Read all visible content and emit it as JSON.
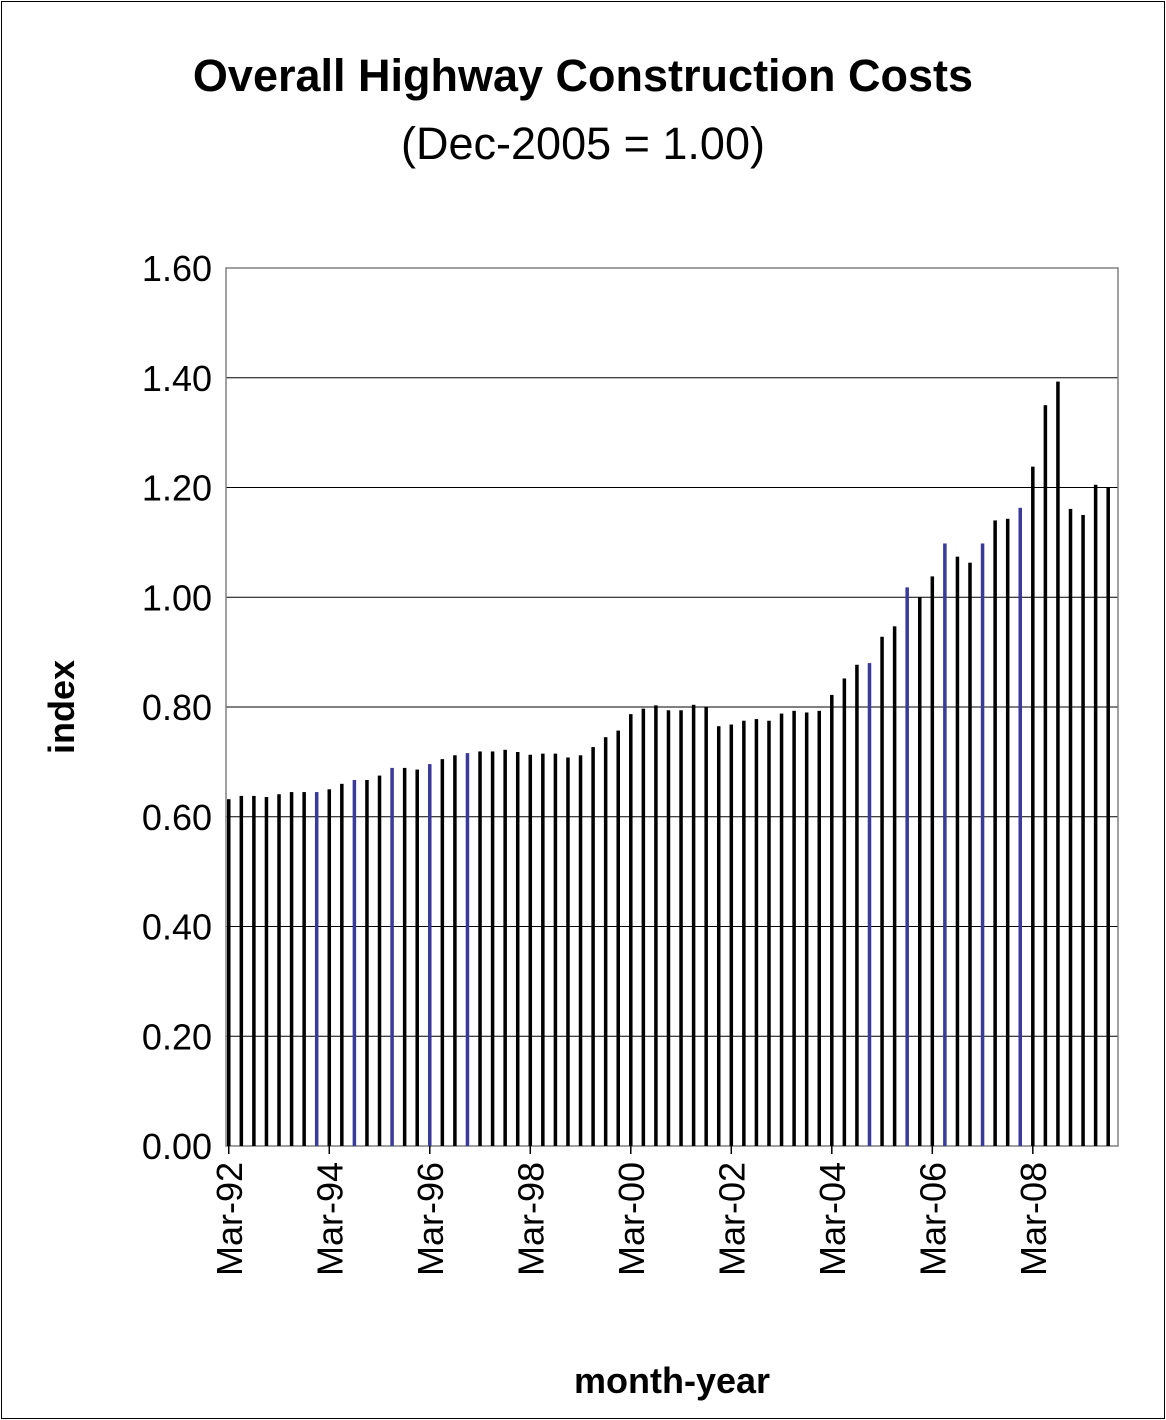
{
  "chart_data": {
    "type": "bar",
    "title": "Overall Highway Construction Costs",
    "subtitle": "(Dec-2005 = 1.00)",
    "xlabel": "month-year",
    "ylabel": "index",
    "ylim": [
      0,
      1.6
    ],
    "yticks": [
      "0.00",
      "0.20",
      "0.40",
      "0.60",
      "0.80",
      "1.00",
      "1.20",
      "1.40",
      "1.60"
    ],
    "xticks": [
      "Mar-92",
      "Mar-94",
      "Mar-96",
      "Mar-98",
      "Mar-00",
      "Mar-02",
      "Mar-04",
      "Mar-06",
      "Mar-08"
    ],
    "grid": true,
    "bar_color": "#000000",
    "highlight_color": "#3a3a9a",
    "categories_start": "Mar-92",
    "categories_end": "Sep-09",
    "categories_step": "quarterly",
    "values": [
      0.632,
      0.638,
      0.638,
      0.636,
      0.641,
      0.645,
      0.645,
      0.645,
      0.65,
      0.66,
      0.667,
      0.667,
      0.675,
      0.689,
      0.689,
      0.686,
      0.696,
      0.705,
      0.712,
      0.716,
      0.719,
      0.719,
      0.722,
      0.718,
      0.713,
      0.715,
      0.715,
      0.708,
      0.712,
      0.727,
      0.745,
      0.757,
      0.787,
      0.797,
      0.803,
      0.794,
      0.794,
      0.804,
      0.8,
      0.765,
      0.768,
      0.775,
      0.778,
      0.775,
      0.788,
      0.793,
      0.79,
      0.793,
      0.822,
      0.852,
      0.877,
      0.88,
      0.928,
      0.947,
      1.018,
      1.0,
      1.038,
      1.098,
      1.074,
      1.063,
      1.098,
      1.14,
      1.143,
      1.163,
      1.238,
      1.35,
      1.393,
      1.161,
      1.15,
      1.205,
      1.2
    ],
    "highlighted_indices": [
      7,
      10,
      13,
      16,
      19,
      51,
      54,
      57,
      60,
      63
    ]
  }
}
